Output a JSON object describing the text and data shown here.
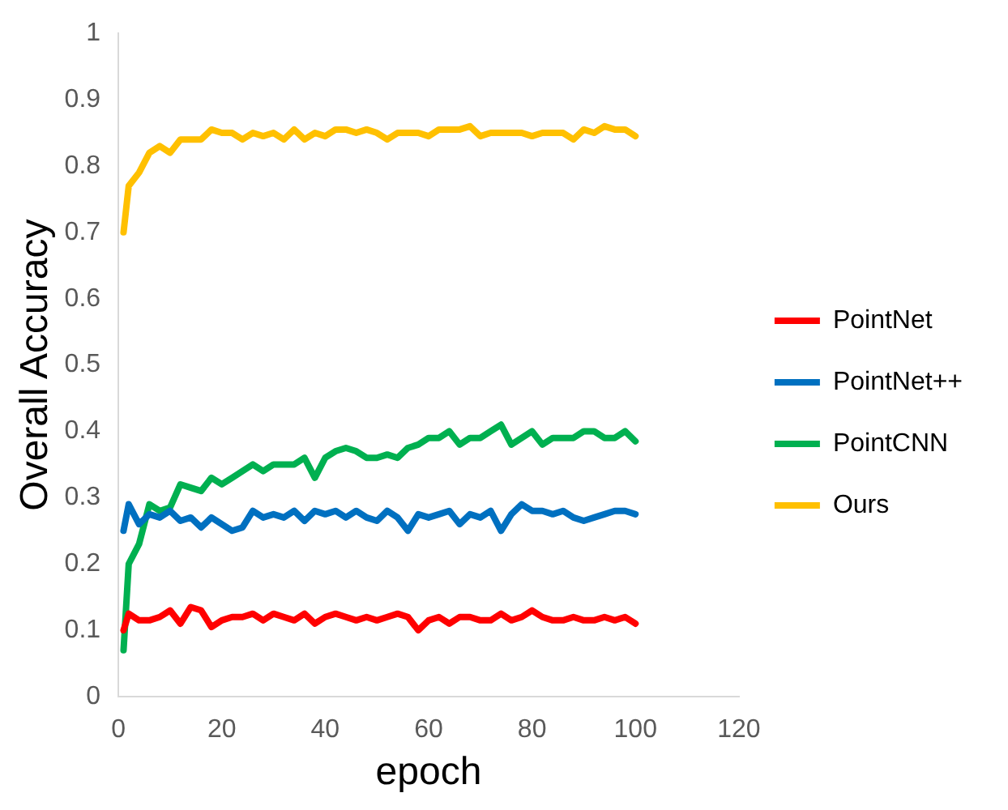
{
  "chart_data": {
    "type": "line",
    "xlabel": "epoch",
    "ylabel": "Overall Accuracy",
    "x": [
      1,
      2,
      4,
      6,
      8,
      10,
      12,
      14,
      16,
      18,
      20,
      22,
      24,
      26,
      28,
      30,
      32,
      34,
      36,
      38,
      40,
      42,
      44,
      46,
      48,
      50,
      52,
      54,
      56,
      58,
      60,
      62,
      64,
      66,
      68,
      70,
      72,
      74,
      76,
      78,
      80,
      82,
      84,
      86,
      88,
      90,
      92,
      94,
      96,
      98,
      100
    ],
    "xlim": [
      0,
      120
    ],
    "xticks": [
      0,
      20,
      40,
      60,
      80,
      100,
      120
    ],
    "ylim": [
      0,
      1
    ],
    "yticks": [
      0,
      0.1,
      0.2,
      0.3,
      0.4,
      0.5,
      0.6,
      0.7,
      0.8,
      0.9,
      1
    ],
    "grid": false,
    "legend": "right",
    "marker": "none",
    "line_style": "solid",
    "series": [
      {
        "name": "PointNet",
        "color": "#ff0000",
        "values": [
          0.1,
          0.125,
          0.115,
          0.115,
          0.12,
          0.13,
          0.11,
          0.135,
          0.13,
          0.105,
          0.115,
          0.12,
          0.12,
          0.125,
          0.115,
          0.125,
          0.12,
          0.115,
          0.125,
          0.11,
          0.12,
          0.125,
          0.12,
          0.115,
          0.12,
          0.115,
          0.12,
          0.125,
          0.12,
          0.1,
          0.115,
          0.12,
          0.11,
          0.12,
          0.12,
          0.115,
          0.115,
          0.125,
          0.115,
          0.12,
          0.13,
          0.12,
          0.115,
          0.115,
          0.12,
          0.115,
          0.115,
          0.12,
          0.115,
          0.12,
          0.11
        ]
      },
      {
        "name": "PointNet++",
        "color": "#0070c0",
        "values": [
          0.25,
          0.29,
          0.26,
          0.275,
          0.27,
          0.28,
          0.265,
          0.27,
          0.255,
          0.27,
          0.26,
          0.25,
          0.255,
          0.28,
          0.27,
          0.275,
          0.27,
          0.28,
          0.265,
          0.28,
          0.275,
          0.28,
          0.27,
          0.28,
          0.27,
          0.265,
          0.28,
          0.27,
          0.25,
          0.275,
          0.27,
          0.275,
          0.28,
          0.26,
          0.275,
          0.27,
          0.28,
          0.25,
          0.275,
          0.29,
          0.28,
          0.28,
          0.275,
          0.28,
          0.27,
          0.265,
          0.27,
          0.275,
          0.28,
          0.28,
          0.275
        ]
      },
      {
        "name": "PointCNN",
        "color": "#00b050",
        "values": [
          0.07,
          0.2,
          0.23,
          0.29,
          0.28,
          0.285,
          0.32,
          0.315,
          0.31,
          0.33,
          0.32,
          0.33,
          0.34,
          0.35,
          0.34,
          0.35,
          0.35,
          0.35,
          0.36,
          0.33,
          0.36,
          0.37,
          0.375,
          0.37,
          0.36,
          0.36,
          0.365,
          0.36,
          0.375,
          0.38,
          0.39,
          0.39,
          0.4,
          0.38,
          0.39,
          0.39,
          0.4,
          0.41,
          0.38,
          0.39,
          0.4,
          0.38,
          0.39,
          0.39,
          0.39,
          0.4,
          0.4,
          0.39,
          0.39,
          0.4,
          0.385
        ]
      },
      {
        "name": "Ours",
        "color": "#ffc000",
        "values": [
          0.7,
          0.77,
          0.79,
          0.82,
          0.83,
          0.82,
          0.84,
          0.84,
          0.84,
          0.855,
          0.85,
          0.85,
          0.84,
          0.85,
          0.845,
          0.85,
          0.84,
          0.855,
          0.84,
          0.85,
          0.845,
          0.855,
          0.855,
          0.85,
          0.855,
          0.85,
          0.84,
          0.85,
          0.85,
          0.85,
          0.845,
          0.855,
          0.855,
          0.855,
          0.86,
          0.845,
          0.85,
          0.85,
          0.85,
          0.85,
          0.845,
          0.85,
          0.85,
          0.85,
          0.84,
          0.855,
          0.85,
          0.86,
          0.855,
          0.855,
          0.845
        ]
      }
    ]
  }
}
